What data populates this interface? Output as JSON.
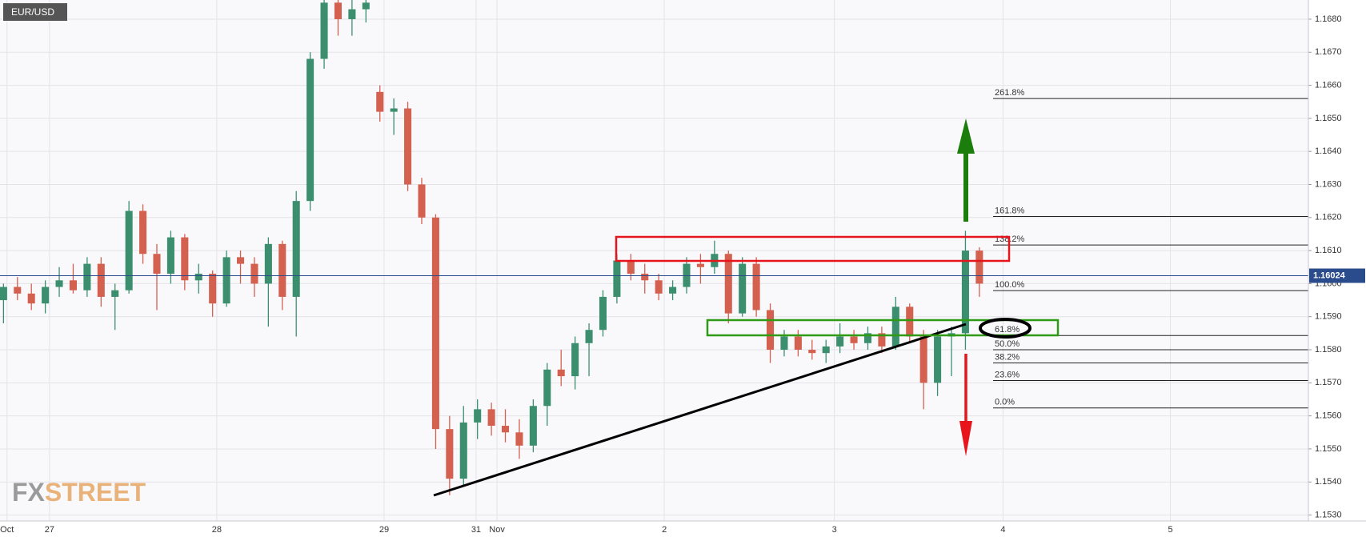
{
  "chart_data": {
    "type": "candlestick",
    "title": "EUR/USD",
    "watermark": [
      "FX",
      "STREET"
    ],
    "up_color": "#3b8f6f",
    "down_color": "#d4604f",
    "open": [
      1.1595,
      1.1599,
      1.1597,
      1.1594,
      1.1599,
      1.1601,
      1.1598,
      1.1606,
      1.1596,
      1.1598,
      1.1622,
      1.1609,
      1.1603,
      1.1614,
      1.1601,
      1.1603,
      1.1594,
      1.1608,
      1.1606,
      1.16,
      1.1612,
      1.1596,
      1.1625,
      1.1668,
      1.1685,
      1.168,
      1.1683,
      1.1658,
      1.1652,
      1.1653,
      1.163,
      1.162,
      1.1556,
      1.1541,
      1.1558,
      1.1562,
      1.1557,
      1.1555,
      1.1551,
      1.1563,
      1.1574,
      1.1572,
      1.1582,
      1.1586,
      1.1596,
      1.1607,
      1.1603,
      1.1601,
      1.1597,
      1.1599,
      1.1606,
      1.1605,
      1.1609,
      1.1591,
      1.1606,
      1.1592,
      1.158,
      1.1584,
      1.158,
      1.1579,
      1.1581,
      1.1584,
      1.1582,
      1.1585,
      1.1581,
      1.1593,
      1.1584,
      1.157,
      1.1584,
      1.1585,
      1.161
    ],
    "high": [
      1.16,
      1.1602,
      1.16,
      1.1601,
      1.1605,
      1.1606,
      1.1608,
      1.1608,
      1.16,
      1.1625,
      1.1624,
      1.1612,
      1.1616,
      1.1615,
      1.1606,
      1.1604,
      1.161,
      1.161,
      1.1608,
      1.1614,
      1.1613,
      1.1628,
      1.167,
      1.169,
      1.169,
      1.1689,
      1.1688,
      1.166,
      1.1656,
      1.1655,
      1.1632,
      1.1621,
      1.156,
      1.1563,
      1.1565,
      1.1564,
      1.1562,
      1.1559,
      1.1565,
      1.1576,
      1.158,
      1.1584,
      1.1588,
      1.1598,
      1.1609,
      1.1609,
      1.1606,
      1.1603,
      1.1601,
      1.1608,
      1.1609,
      1.1613,
      1.161,
      1.1608,
      1.1608,
      1.1594,
      1.1586,
      1.1586,
      1.1583,
      1.1583,
      1.1588,
      1.1586,
      1.1587,
      1.1587,
      1.1596,
      1.1594,
      1.1586,
      1.1586,
      1.1587,
      1.1616,
      1.1611
    ],
    "low": [
      1.1588,
      1.1595,
      1.1592,
      1.1591,
      1.1596,
      1.1597,
      1.1596,
      1.1593,
      1.1586,
      1.1597,
      1.1606,
      1.1592,
      1.16,
      1.1598,
      1.1597,
      1.159,
      1.1593,
      1.16,
      1.1596,
      1.1587,
      1.1592,
      1.1584,
      1.1622,
      1.1665,
      1.1675,
      1.1675,
      1.1679,
      1.1649,
      1.1645,
      1.1628,
      1.1618,
      1.155,
      1.1536,
      1.1539,
      1.1553,
      1.1554,
      1.1552,
      1.1547,
      1.1549,
      1.1557,
      1.1569,
      1.1568,
      1.1572,
      1.1584,
      1.1594,
      1.1601,
      1.1597,
      1.1595,
      1.1595,
      1.1597,
      1.16,
      1.1603,
      1.1588,
      1.159,
      1.159,
      1.1576,
      1.1578,
      1.1578,
      1.1577,
      1.1576,
      1.1579,
      1.158,
      1.158,
      1.1579,
      1.158,
      1.1582,
      1.1562,
      1.1566,
      1.1572,
      1.158,
      1.1596
    ],
    "close": [
      1.1599,
      1.1597,
      1.1594,
      1.1599,
      1.1601,
      1.1598,
      1.1606,
      1.1596,
      1.1598,
      1.1622,
      1.1609,
      1.1603,
      1.1614,
      1.1601,
      1.1603,
      1.1594,
      1.1608,
      1.1606,
      1.16,
      1.1612,
      1.1596,
      1.1625,
      1.1668,
      1.1685,
      1.168,
      1.1683,
      1.1685,
      1.1652,
      1.1653,
      1.163,
      1.162,
      1.1556,
      1.1541,
      1.1558,
      1.1562,
      1.1557,
      1.1555,
      1.1551,
      1.1563,
      1.1574,
      1.1572,
      1.1582,
      1.1586,
      1.1596,
      1.1607,
      1.1603,
      1.1601,
      1.1597,
      1.1599,
      1.1606,
      1.1605,
      1.1609,
      1.1591,
      1.1606,
      1.1592,
      1.158,
      1.1584,
      1.158,
      1.1579,
      1.1581,
      1.1584,
      1.1582,
      1.1585,
      1.1581,
      1.1593,
      1.1584,
      1.157,
      1.1584,
      1.1585,
      1.161,
      1.16
    ],
    "xlim": [
      -0.25,
      93.6
    ],
    "xticks": [
      {
        "value": 0.25,
        "label": "Oct"
      },
      {
        "value": 3.3,
        "label": "27"
      },
      {
        "value": 15.3,
        "label": "28"
      },
      {
        "value": 27.3,
        "label": "29"
      },
      {
        "value": 33.9,
        "label": "31"
      },
      {
        "value": 35.4,
        "label": "Nov"
      },
      {
        "value": 47.4,
        "label": "2"
      },
      {
        "value": 59.6,
        "label": "3"
      },
      {
        "value": 71.7,
        "label": "4"
      },
      {
        "value": 83.7,
        "label": "5"
      }
    ],
    "ylim": [
      1.15282,
      1.16858
    ],
    "yticks": [
      {
        "value": 1.153,
        "label": "1.1530"
      },
      {
        "value": 1.154,
        "label": "1.1540"
      },
      {
        "value": 1.155,
        "label": "1.1550"
      },
      {
        "value": 1.156,
        "label": "1.1560"
      },
      {
        "value": 1.157,
        "label": "1.1570"
      },
      {
        "value": 1.158,
        "label": "1.1580"
      },
      {
        "value": 1.159,
        "label": "1.1590"
      },
      {
        "value": 1.16,
        "label": "1.1600"
      },
      {
        "value": 1.161,
        "label": "1.1610"
      },
      {
        "value": 1.162,
        "label": "1.1620"
      },
      {
        "value": 1.163,
        "label": "1.1630"
      },
      {
        "value": 1.164,
        "label": "1.1640"
      },
      {
        "value": 1.165,
        "label": "1.1650"
      },
      {
        "value": 1.166,
        "label": "1.1660"
      },
      {
        "value": 1.167,
        "label": "1.1670"
      },
      {
        "value": 1.168,
        "label": "1.1680"
      }
    ],
    "grid": true,
    "last_price": 1.16024,
    "fib_levels": [
      {
        "value": 1.1656,
        "label": "261.8%"
      },
      {
        "value": 1.16203,
        "label": "161.8%"
      },
      {
        "value": 1.16117,
        "label": "138.2%"
      },
      {
        "value": 1.15979,
        "label": "100.0%"
      },
      {
        "value": 1.15843,
        "label": "61.8%"
      },
      {
        "value": 1.158,
        "label": "50.0%"
      },
      {
        "value": 1.1576,
        "label": "38.2%"
      },
      {
        "value": 1.15707,
        "label": "23.6%"
      },
      {
        "value": 1.15624,
        "label": "0.0%"
      }
    ]
  }
}
